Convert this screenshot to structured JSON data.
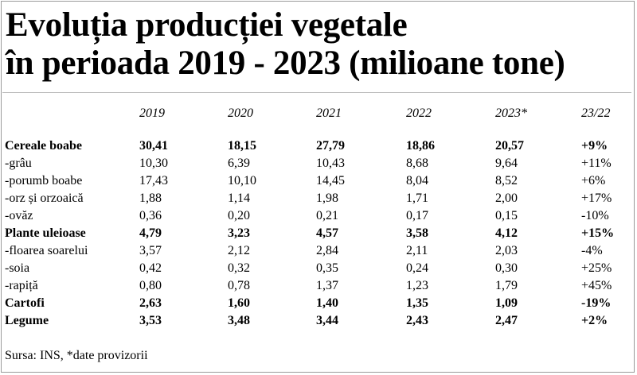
{
  "title": {
    "line1": "Evoluția producției vegetale",
    "line2": "în perioada 2019 - 2023 (milioane tone)"
  },
  "source": "Sursa: INS, *date provizorii",
  "chart_data": {
    "type": "table",
    "title": "Evoluția producției vegetale în perioada 2019 - 2023 (milioane tone)",
    "columns": [
      "2019",
      "2020",
      "2021",
      "2022",
      "2023*",
      "23/22"
    ],
    "rows": [
      {
        "label": "Cereale boabe",
        "bold": true,
        "values": [
          "30,41",
          "18,15",
          "27,79",
          "18,86",
          "20,57",
          "+9%"
        ]
      },
      {
        "label": "-grâu",
        "bold": false,
        "values": [
          "10,30",
          "6,39",
          "10,43",
          "8,68",
          "9,64",
          "+11%"
        ]
      },
      {
        "label": "-porumb boabe",
        "bold": false,
        "values": [
          "17,43",
          "10,10",
          "14,45",
          "8,04",
          "8,52",
          "+6%"
        ]
      },
      {
        "label": "-orz și orzoaică",
        "bold": false,
        "values": [
          "1,88",
          "1,14",
          "1,98",
          "1,71",
          "2,00",
          "+17%"
        ]
      },
      {
        "label": "-ovăz",
        "bold": false,
        "values": [
          "0,36",
          "0,20",
          "0,21",
          "0,17",
          "0,15",
          "-10%"
        ]
      },
      {
        "label": "Plante uleioase",
        "bold": true,
        "values": [
          "4,79",
          "3,23",
          "4,57",
          "3,58",
          "4,12",
          "+15%"
        ]
      },
      {
        "label": "-floarea soarelui",
        "bold": false,
        "values": [
          "3,57",
          "2,12",
          "2,84",
          "2,11",
          "2,03",
          "-4%"
        ]
      },
      {
        "label": "-soia",
        "bold": false,
        "values": [
          "0,42",
          "0,32",
          "0,35",
          "0,24",
          "0,30",
          "+25%"
        ]
      },
      {
        "label": "-rapiță",
        "bold": false,
        "values": [
          "0,80",
          "0,78",
          "1,37",
          "1,23",
          "1,79",
          "+45%"
        ]
      },
      {
        "label": "Cartofi",
        "bold": true,
        "values": [
          "2,63",
          "1,60",
          "1,40",
          "1,35",
          "1,09",
          "-19%"
        ]
      },
      {
        "label": "Legume",
        "bold": true,
        "values": [
          "3,53",
          "3,48",
          "3,44",
          "2,43",
          "2,47",
          "+2%"
        ]
      }
    ]
  }
}
